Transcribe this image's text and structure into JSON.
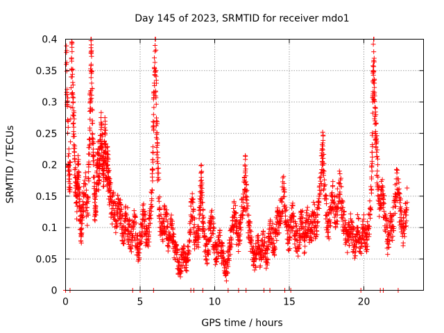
{
  "chart_data": {
    "type": "scatter",
    "title": "Day 145 of 2023, SRMTID for receiver mdo1",
    "xlabel": "GPS time / hours",
    "ylabel": "SRMTID / TECUs",
    "xlim": [
      0,
      24
    ],
    "ylim": [
      0,
      0.4
    ],
    "x_ticks": [
      0,
      5,
      10,
      15,
      20
    ],
    "x_tick_labels": [
      "0",
      "5",
      "10",
      "15",
      "20"
    ],
    "y_ticks": [
      0,
      0.05,
      0.1,
      0.15,
      0.2,
      0.25,
      0.3,
      0.35,
      0.4
    ],
    "y_tick_labels": [
      "0",
      "0.05",
      "0.1",
      "0.15",
      "0.2",
      "0.25",
      "0.3",
      "0.35",
      "0.4"
    ],
    "grid": true,
    "marker": "plus",
    "marker_color": "#ff0000",
    "series": [
      {
        "name": "SRMTID",
        "points": [
          [
            0.05,
            0.36
          ],
          [
            0.1,
            0.32
          ],
          [
            0.15,
            0.27
          ],
          [
            0.2,
            0.2
          ],
          [
            0.25,
            0.19
          ],
          [
            0.3,
            0.16
          ],
          [
            0.4,
            0.37
          ],
          [
            0.45,
            0.34
          ],
          [
            0.5,
            0.3
          ],
          [
            0.55,
            0.26
          ],
          [
            0.6,
            0.22
          ],
          [
            0.65,
            0.18
          ],
          [
            0.7,
            0.15
          ],
          [
            0.75,
            0.14
          ],
          [
            0.8,
            0.17
          ],
          [
            0.85,
            0.2
          ],
          [
            0.9,
            0.16
          ],
          [
            0.95,
            0.13
          ],
          [
            1.0,
            0.11
          ],
          [
            1.05,
            0.09
          ],
          [
            1.1,
            0.12
          ],
          [
            1.2,
            0.15
          ],
          [
            1.3,
            0.17
          ],
          [
            1.4,
            0.14
          ],
          [
            1.5,
            0.12
          ],
          [
            1.55,
            0.2
          ],
          [
            1.6,
            0.24
          ],
          [
            1.65,
            0.3
          ],
          [
            1.7,
            0.35
          ],
          [
            1.72,
            0.38
          ],
          [
            1.75,
            0.33
          ],
          [
            1.8,
            0.27
          ],
          [
            1.85,
            0.22
          ],
          [
            1.9,
            0.18
          ],
          [
            1.95,
            0.14
          ],
          [
            2.0,
            0.12
          ],
          [
            2.05,
            0.15
          ],
          [
            2.1,
            0.19
          ],
          [
            2.15,
            0.22
          ],
          [
            2.2,
            0.2
          ],
          [
            2.25,
            0.18
          ],
          [
            2.3,
            0.21
          ],
          [
            2.35,
            0.24
          ],
          [
            2.4,
            0.26
          ],
          [
            2.45,
            0.23
          ],
          [
            2.5,
            0.2
          ],
          [
            2.55,
            0.19
          ],
          [
            2.6,
            0.22
          ],
          [
            2.65,
            0.25
          ],
          [
            2.7,
            0.21
          ],
          [
            2.75,
            0.18
          ],
          [
            2.8,
            0.2
          ],
          [
            2.85,
            0.19
          ],
          [
            2.9,
            0.17
          ],
          [
            2.95,
            0.16
          ],
          [
            3.0,
            0.15
          ],
          [
            3.1,
            0.13
          ],
          [
            3.2,
            0.14
          ],
          [
            3.3,
            0.12
          ],
          [
            3.4,
            0.11
          ],
          [
            3.5,
            0.13
          ],
          [
            3.6,
            0.14
          ],
          [
            3.7,
            0.12
          ],
          [
            3.8,
            0.1
          ],
          [
            3.9,
            0.09
          ],
          [
            4.0,
            0.11
          ],
          [
            4.1,
            0.12
          ],
          [
            4.2,
            0.1
          ],
          [
            4.3,
            0.09
          ],
          [
            4.4,
            0.08
          ],
          [
            4.5,
            0.1
          ],
          [
            4.6,
            0.11
          ],
          [
            4.7,
            0.09
          ],
          [
            4.8,
            0.07
          ],
          [
            4.9,
            0.06
          ],
          [
            5.0,
            0.08
          ],
          [
            5.1,
            0.1
          ],
          [
            5.2,
            0.12
          ],
          [
            5.3,
            0.11
          ],
          [
            5.4,
            0.09
          ],
          [
            5.5,
            0.08
          ],
          [
            5.6,
            0.1
          ],
          [
            5.7,
            0.12
          ],
          [
            5.8,
            0.16
          ],
          [
            5.85,
            0.22
          ],
          [
            5.9,
            0.28
          ],
          [
            5.95,
            0.33
          ],
          [
            6.0,
            0.39
          ],
          [
            6.05,
            0.35
          ],
          [
            6.1,
            0.27
          ],
          [
            6.15,
            0.22
          ],
          [
            6.2,
            0.18
          ],
          [
            6.3,
            0.13
          ],
          [
            6.4,
            0.1
          ],
          [
            6.5,
            0.09
          ],
          [
            6.6,
            0.11
          ],
          [
            6.7,
            0.12
          ],
          [
            6.8,
            0.1
          ],
          [
            6.9,
            0.08
          ],
          [
            7.0,
            0.09
          ],
          [
            7.1,
            0.1
          ],
          [
            7.2,
            0.08
          ],
          [
            7.3,
            0.07
          ],
          [
            7.4,
            0.06
          ],
          [
            7.5,
            0.05
          ],
          [
            7.6,
            0.04
          ],
          [
            7.7,
            0.03
          ],
          [
            7.8,
            0.05
          ],
          [
            7.9,
            0.06
          ],
          [
            8.0,
            0.05
          ],
          [
            8.1,
            0.04
          ],
          [
            8.2,
            0.06
          ],
          [
            8.3,
            0.08
          ],
          [
            8.4,
            0.12
          ],
          [
            8.5,
            0.14
          ],
          [
            8.6,
            0.1
          ],
          [
            8.7,
            0.08
          ],
          [
            8.8,
            0.07
          ],
          [
            8.9,
            0.09
          ],
          [
            9.0,
            0.12
          ],
          [
            9.05,
            0.15
          ],
          [
            9.1,
            0.18
          ],
          [
            9.15,
            0.14
          ],
          [
            9.2,
            0.11
          ],
          [
            9.3,
            0.09
          ],
          [
            9.4,
            0.07
          ],
          [
            9.5,
            0.06
          ],
          [
            9.6,
            0.08
          ],
          [
            9.7,
            0.1
          ],
          [
            9.8,
            0.11
          ],
          [
            9.9,
            0.09
          ],
          [
            10.0,
            0.07
          ],
          [
            10.1,
            0.05
          ],
          [
            10.2,
            0.06
          ],
          [
            10.3,
            0.08
          ],
          [
            10.4,
            0.07
          ],
          [
            10.5,
            0.06
          ],
          [
            10.6,
            0.05
          ],
          [
            10.7,
            0.04
          ],
          [
            10.8,
            0.03
          ],
          [
            10.9,
            0.05
          ],
          [
            11.0,
            0.07
          ],
          [
            11.1,
            0.08
          ],
          [
            11.2,
            0.1
          ],
          [
            11.3,
            0.12
          ],
          [
            11.4,
            0.11
          ],
          [
            11.5,
            0.09
          ],
          [
            11.6,
            0.08
          ],
          [
            11.7,
            0.1
          ],
          [
            11.8,
            0.12
          ],
          [
            11.9,
            0.14
          ],
          [
            12.0,
            0.16
          ],
          [
            12.05,
            0.19
          ],
          [
            12.1,
            0.15
          ],
          [
            12.2,
            0.12
          ],
          [
            12.3,
            0.1
          ],
          [
            12.4,
            0.08
          ],
          [
            12.5,
            0.07
          ],
          [
            12.6,
            0.06
          ],
          [
            12.7,
            0.05
          ],
          [
            12.8,
            0.06
          ],
          [
            12.9,
            0.07
          ],
          [
            13.0,
            0.05
          ],
          [
            13.1,
            0.06
          ],
          [
            13.2,
            0.08
          ],
          [
            13.3,
            0.07
          ],
          [
            13.4,
            0.06
          ],
          [
            13.5,
            0.05
          ],
          [
            13.6,
            0.07
          ],
          [
            13.7,
            0.09
          ],
          [
            13.8,
            0.1
          ],
          [
            13.9,
            0.08
          ],
          [
            14.0,
            0.07
          ],
          [
            14.1,
            0.09
          ],
          [
            14.2,
            0.11
          ],
          [
            14.3,
            0.1
          ],
          [
            14.4,
            0.12
          ],
          [
            14.5,
            0.14
          ],
          [
            14.6,
            0.16
          ],
          [
            14.7,
            0.13
          ],
          [
            14.8,
            0.11
          ],
          [
            14.9,
            0.09
          ],
          [
            15.0,
            0.08
          ],
          [
            15.1,
            0.1
          ],
          [
            15.2,
            0.12
          ],
          [
            15.3,
            0.11
          ],
          [
            15.4,
            0.09
          ],
          [
            15.5,
            0.08
          ],
          [
            15.6,
            0.07
          ],
          [
            15.7,
            0.09
          ],
          [
            15.8,
            0.11
          ],
          [
            15.9,
            0.1
          ],
          [
            16.0,
            0.08
          ],
          [
            16.1,
            0.09
          ],
          [
            16.2,
            0.11
          ],
          [
            16.3,
            0.1
          ],
          [
            16.4,
            0.09
          ],
          [
            16.5,
            0.1
          ],
          [
            16.6,
            0.12
          ],
          [
            16.7,
            0.11
          ],
          [
            16.8,
            0.1
          ],
          [
            16.9,
            0.12
          ],
          [
            17.0,
            0.14
          ],
          [
            17.1,
            0.17
          ],
          [
            17.2,
            0.2
          ],
          [
            17.25,
            0.23
          ],
          [
            17.3,
            0.19
          ],
          [
            17.4,
            0.15
          ],
          [
            17.5,
            0.12
          ],
          [
            17.6,
            0.1
          ],
          [
            17.7,
            0.11
          ],
          [
            17.8,
            0.13
          ],
          [
            17.9,
            0.15
          ],
          [
            18.0,
            0.14
          ],
          [
            18.1,
            0.12
          ],
          [
            18.2,
            0.13
          ],
          [
            18.3,
            0.15
          ],
          [
            18.4,
            0.17
          ],
          [
            18.5,
            0.14
          ],
          [
            18.6,
            0.12
          ],
          [
            18.7,
            0.1
          ],
          [
            18.8,
            0.09
          ],
          [
            18.9,
            0.08
          ],
          [
            19.0,
            0.09
          ],
          [
            19.1,
            0.1
          ],
          [
            19.2,
            0.09
          ],
          [
            19.3,
            0.08
          ],
          [
            19.4,
            0.07
          ],
          [
            19.5,
            0.09
          ],
          [
            19.6,
            0.1
          ],
          [
            19.7,
            0.08
          ],
          [
            19.8,
            0.07
          ],
          [
            19.9,
            0.09
          ],
          [
            20.0,
            0.1
          ],
          [
            20.1,
            0.09
          ],
          [
            20.2,
            0.08
          ],
          [
            20.3,
            0.1
          ],
          [
            20.4,
            0.12
          ],
          [
            20.5,
            0.16
          ],
          [
            20.55,
            0.22
          ],
          [
            20.6,
            0.3
          ],
          [
            20.63,
            0.35
          ],
          [
            20.66,
            0.38
          ],
          [
            20.7,
            0.33
          ],
          [
            20.75,
            0.27
          ],
          [
            20.8,
            0.25
          ],
          [
            20.85,
            0.22
          ],
          [
            20.9,
            0.19
          ],
          [
            21.0,
            0.15
          ],
          [
            21.1,
            0.13
          ],
          [
            21.2,
            0.16
          ],
          [
            21.3,
            0.14
          ],
          [
            21.4,
            0.12
          ],
          [
            21.5,
            0.1
          ],
          [
            21.6,
            0.08
          ],
          [
            21.7,
            0.09
          ],
          [
            21.8,
            0.11
          ],
          [
            21.9,
            0.1
          ],
          [
            22.0,
            0.12
          ],
          [
            22.1,
            0.15
          ],
          [
            22.2,
            0.17
          ],
          [
            22.3,
            0.16
          ],
          [
            22.4,
            0.13
          ],
          [
            22.5,
            0.11
          ],
          [
            22.6,
            0.09
          ],
          [
            22.7,
            0.1
          ],
          [
            22.8,
            0.12
          ],
          [
            22.9,
            0.14
          ]
        ],
        "zero_points_x": [
          0,
          0.3,
          4.5,
          5.0,
          5.9,
          8.4,
          8.6,
          9.2,
          10.9,
          11.6,
          12.1,
          13.3,
          13.7,
          14.7,
          15.1,
          19.8,
          21.1,
          21.3,
          22.3
        ]
      }
    ]
  }
}
